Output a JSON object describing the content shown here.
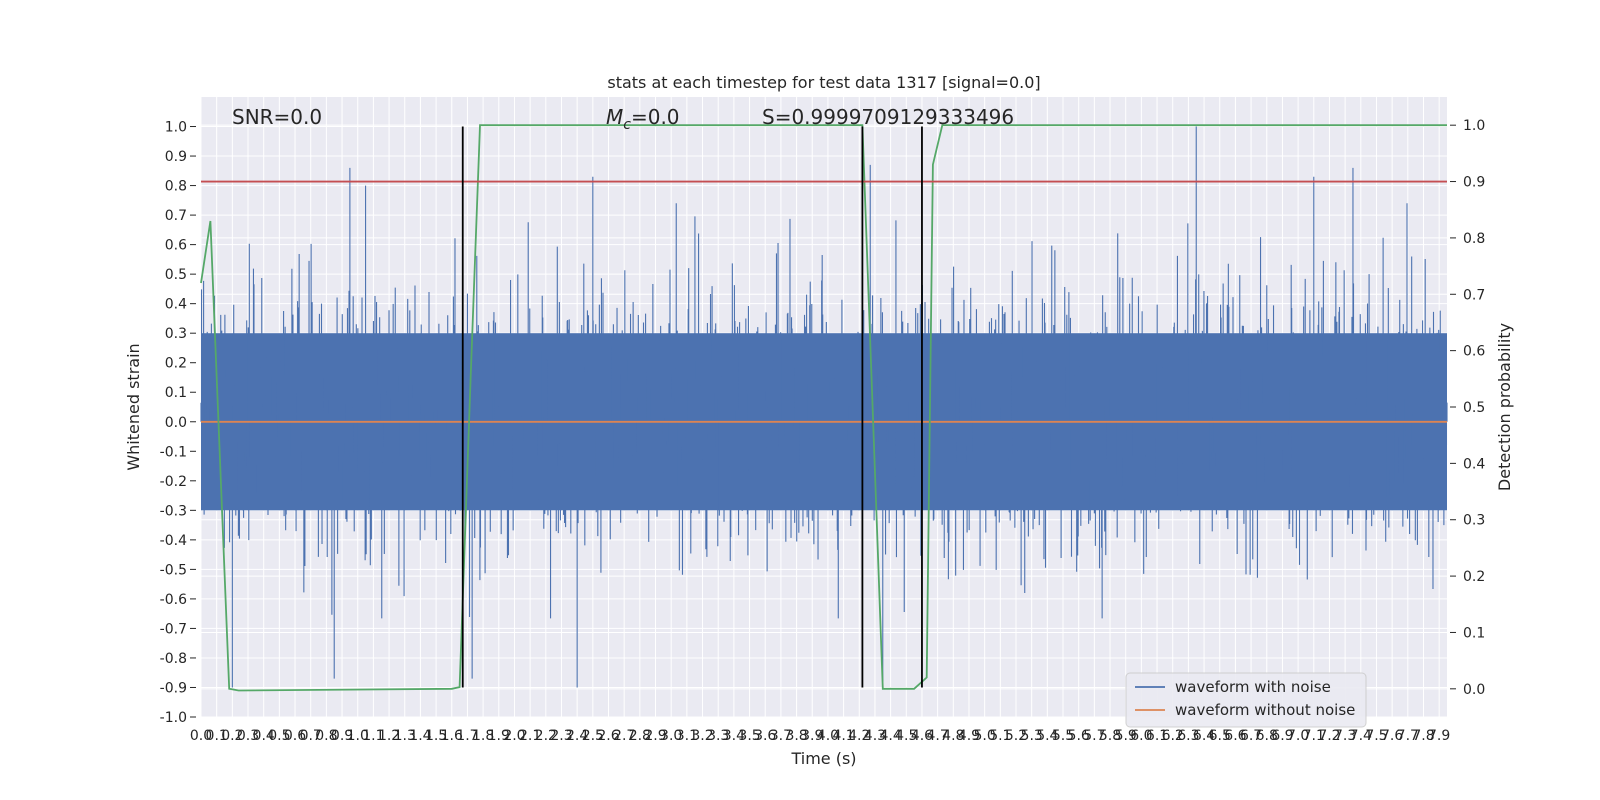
{
  "chart_data": {
    "type": "line",
    "title": "stats at each timestep for test data 1317 [signal=0.0]",
    "xlabel": "Time (s)",
    "ylabel": "Whitened strain",
    "ylabel_right": "Detection probability",
    "xlim": [
      0.0,
      7.95
    ],
    "ylim": [
      -1.0,
      1.1
    ],
    "ylim_right": [
      -0.05,
      1.05
    ],
    "grid": true,
    "x_ticks": [
      "0.0",
      "0.1",
      "0.2",
      "0.3",
      "0.4",
      "0.5",
      "0.6",
      "0.7",
      "0.8",
      "0.9",
      "1.0",
      "1.1",
      "1.2",
      "1.3",
      "1.4",
      "1.5",
      "1.6",
      "1.7",
      "1.8",
      "1.9",
      "2.0",
      "2.1",
      "2.2",
      "2.3",
      "2.4",
      "2.5",
      "2.6",
      "2.7",
      "2.8",
      "2.9",
      "3.0",
      "3.1",
      "3.2",
      "3.3",
      "3.4",
      "3.5",
      "3.6",
      "3.7",
      "3.8",
      "3.9",
      "4.0",
      "4.1",
      "4.2",
      "4.3",
      "4.4",
      "4.5",
      "4.6",
      "4.7",
      "4.8",
      "4.9",
      "5.0",
      "5.1",
      "5.2",
      "5.3",
      "5.4",
      "5.5",
      "5.6",
      "5.7",
      "5.8",
      "5.9",
      "6.0",
      "6.1",
      "6.2",
      "6.3",
      "6.4",
      "6.5",
      "6.6",
      "6.7",
      "6.8",
      "6.9",
      "7.0",
      "7.1",
      "7.2",
      "7.3",
      "7.4",
      "7.5",
      "7.6",
      "7.7",
      "7.8",
      "7.9"
    ],
    "y_ticks": [
      "-1.0",
      "-0.9",
      "-0.8",
      "-0.7",
      "-0.6",
      "-0.5",
      "-0.4",
      "-0.3",
      "-0.2",
      "-0.1",
      "0.0",
      "0.1",
      "0.2",
      "0.3",
      "0.4",
      "0.5",
      "0.6",
      "0.7",
      "0.8",
      "0.9",
      "1.0"
    ],
    "y_ticks_right": [
      "0.0",
      "0.1",
      "0.2",
      "0.3",
      "0.4",
      "0.5",
      "0.6",
      "0.7",
      "0.8",
      "0.9",
      "1.0"
    ],
    "annotations": {
      "snr": "SNR=0.0",
      "mc": "=0.0",
      "mc_symbol": "M",
      "mc_sub": "c",
      "s": "S=0.9999709129333496"
    },
    "legend": {
      "placement": "lower right",
      "entries": [
        "waveform with noise",
        "waveform without noise"
      ]
    },
    "colors": {
      "noise": "#4c72b0",
      "clean": "#dd8452",
      "prob": "#55a868",
      "threshold": "#c44e52",
      "markers": "#000000",
      "background": "#eaeaf2"
    },
    "series": [
      {
        "name": "waveform with noise",
        "kind": "noise",
        "typical_amplitude": 0.42,
        "peak_max": 1.0,
        "peak_min": -0.9,
        "peaks": [
          [
            0.95,
            0.86
          ],
          [
            1.05,
            0.8
          ],
          [
            2.5,
            0.83
          ],
          [
            4.27,
            0.87
          ],
          [
            6.35,
            1.0
          ],
          [
            7.1,
            0.83
          ],
          [
            7.35,
            0.86
          ],
          [
            0.85,
            -0.87
          ],
          [
            2.4,
            -0.9
          ],
          [
            4.35,
            -0.88
          ],
          [
            0.2,
            -0.9
          ],
          [
            1.73,
            -0.87
          ]
        ]
      },
      {
        "name": "waveform without noise",
        "kind": "line",
        "x": [
          0.0,
          7.95
        ],
        "y": [
          0.0,
          0.0
        ]
      },
      {
        "name": "detection probability",
        "kind": "line",
        "axis": "right",
        "x": [
          0.0,
          0.06,
          0.18,
          0.24,
          1.6,
          1.65,
          1.72,
          1.78,
          1.82,
          4.22,
          4.35,
          4.55,
          4.63,
          4.67,
          4.73,
          7.95
        ],
        "y": [
          0.72,
          0.83,
          0.0,
          -0.003,
          0.0,
          0.003,
          0.55,
          1.0,
          1.0,
          1.0,
          0.0,
          0.0,
          0.02,
          0.93,
          1.0,
          1.0
        ]
      },
      {
        "name": "threshold",
        "kind": "hline",
        "axis": "right",
        "y": 0.9
      },
      {
        "name": "detection markers",
        "kind": "vlines",
        "x": [
          1.67,
          4.22,
          4.6
        ],
        "ymin": -0.9,
        "ymax": 1.0
      }
    ]
  }
}
